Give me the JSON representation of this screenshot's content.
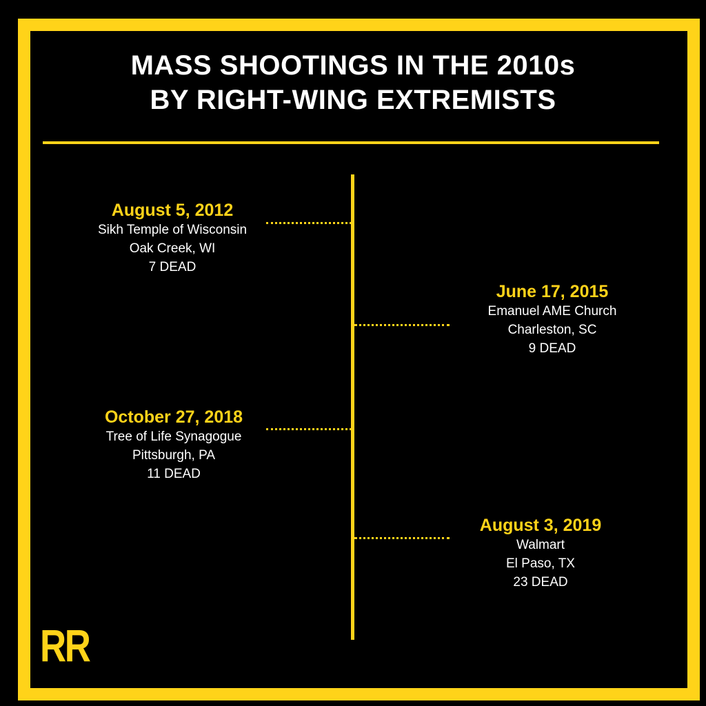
{
  "title": {
    "line1": "MASS SHOOTINGS IN THE 2010s",
    "line2": "BY RIGHT-WING EXTREMISTS"
  },
  "events": [
    {
      "date": "August 5, 2012",
      "place": "Sikh Temple of Wisconsin",
      "location": "Oak Creek, WI",
      "deaths": "7 DEAD",
      "side": "left"
    },
    {
      "date": "June 17, 2015",
      "place": "Emanuel AME Church",
      "location": "Charleston, SC",
      "deaths": "9 DEAD",
      "side": "right"
    },
    {
      "date": "October 27, 2018",
      "place": "Tree of Life Synagogue",
      "location": "Pittsburgh, PA",
      "deaths": "11 DEAD",
      "side": "left"
    },
    {
      "date": "August 3, 2019",
      "place": "Walmart",
      "location": "El Paso, TX",
      "deaths": "23 DEAD",
      "side": "right"
    }
  ],
  "logo": {
    "text": "RR"
  },
  "colors": {
    "accent": "#FFD319",
    "background": "#000000",
    "text": "#FFFFFF"
  }
}
